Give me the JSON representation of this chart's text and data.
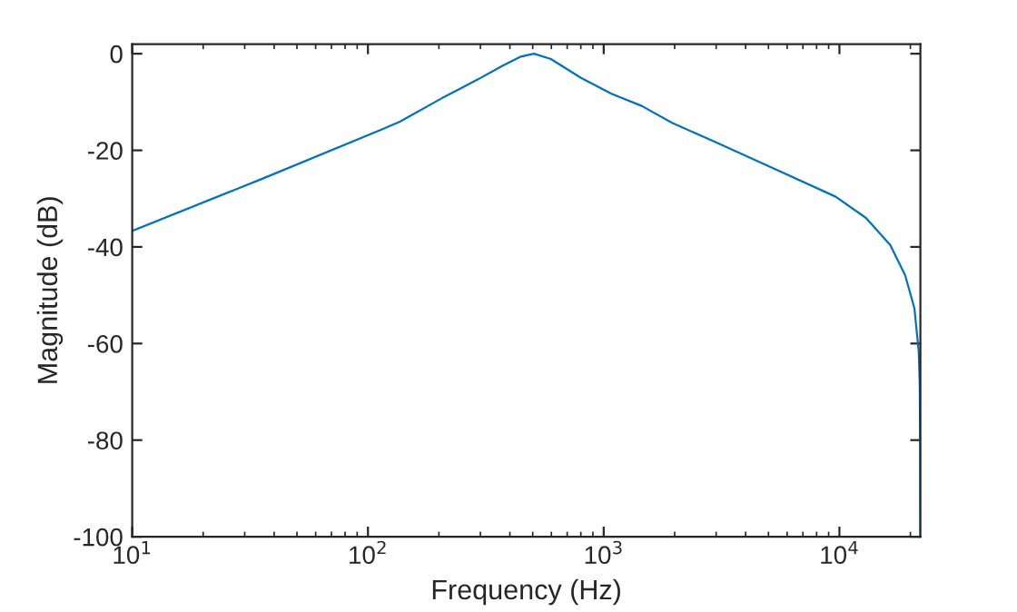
{
  "chart_data": {
    "type": "line",
    "xlabel": "Frequency (Hz)",
    "ylabel": "Magnitude (dB)",
    "log": "x",
    "grid": false,
    "legend": false,
    "marker": "none",
    "line_style": "solid",
    "xlim": [
      10,
      22050
    ],
    "ylim": [
      -100,
      2
    ],
    "xticks": [
      {
        "value": 10,
        "label": "10$^{1}$"
      },
      {
        "value": 100,
        "label": "10$^{2}$"
      },
      {
        "value": 1000,
        "label": "10$^{3}$"
      },
      {
        "value": 10000,
        "label": "10$^{4}$"
      }
    ],
    "yticks": [
      -100,
      -80,
      -60,
      -40,
      -20,
      0
    ],
    "series": [
      {
        "color": "#0072bd",
        "x": [
          10,
          36,
          114,
          136,
          206,
          293,
          372,
          445,
          506,
          597,
          801,
          1079,
          1449,
          1949,
          2951,
          5336,
          9640,
          12960,
          16420,
          19010,
          20800,
          21690,
          21900,
          22000,
          22050
        ],
        "values": [
          -36.7,
          -25.8,
          -15.7,
          -14.1,
          -9.2,
          -5.3,
          -2.5,
          -0.6,
          0,
          -1.1,
          -5.0,
          -8.3,
          -10.8,
          -14.3,
          -18.2,
          -23.9,
          -29.6,
          -34.0,
          -39.6,
          -45.9,
          -52.7,
          -61.6,
          -67.9,
          -80,
          -100
        ]
      }
    ]
  }
}
